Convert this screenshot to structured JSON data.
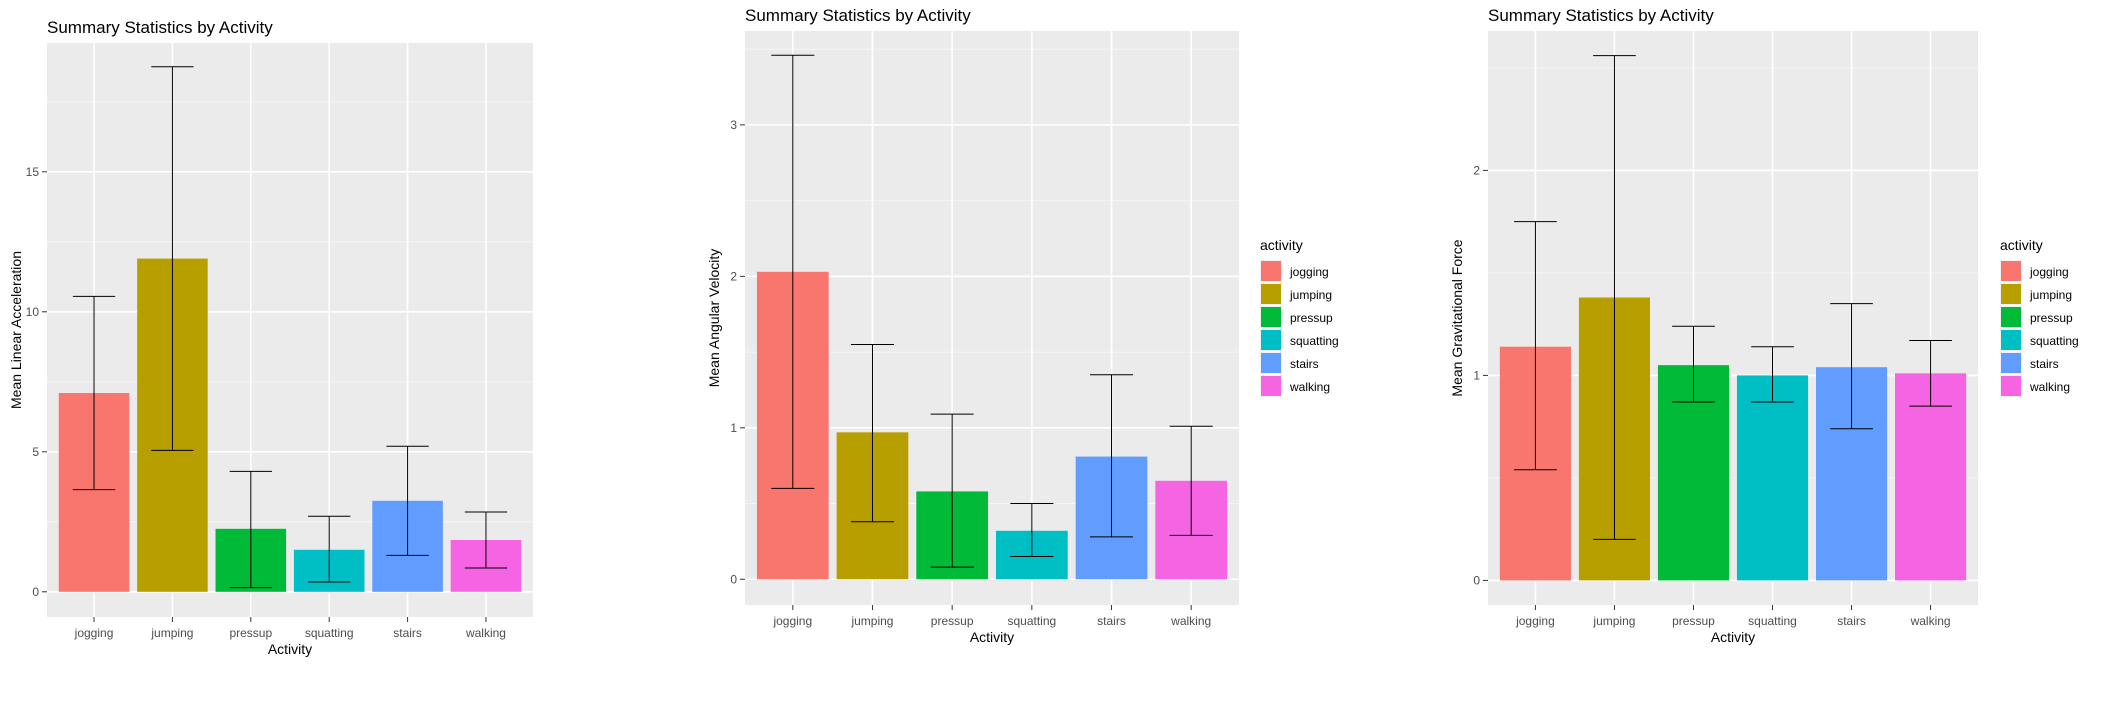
{
  "legend_title": "activity",
  "colors": {
    "jogging": "#F8766D",
    "jumping": "#B79F00",
    "pressup": "#00BA38",
    "squatting": "#00BFC4",
    "stairs": "#619CFF",
    "walking": "#F564E3"
  },
  "chart_data": [
    {
      "type": "bar",
      "title": "Summary Statistics by Activity",
      "xlabel": "Activity",
      "ylabel": "Mean Linear Acceleration",
      "categories": [
        "jogging",
        "jumping",
        "pressup",
        "squatting",
        "stairs",
        "walking"
      ],
      "values": [
        7.1,
        11.9,
        2.25,
        1.5,
        3.25,
        1.85
      ],
      "error_low": [
        3.65,
        5.05,
        0.15,
        0.35,
        1.3,
        0.85
      ],
      "error_high": [
        10.55,
        18.75,
        4.3,
        2.7,
        5.2,
        2.85
      ],
      "ylim": [
        -0.9,
        19.6
      ],
      "yticks": [
        0,
        5,
        10,
        15
      ],
      "ytick_labels": [
        "0",
        "5",
        "10",
        "15"
      ],
      "legend": "right",
      "grid": true
    },
    {
      "type": "bar",
      "title": "Summary Statistics by Activity",
      "xlabel": "Activity",
      "ylabel": "Mean Angular Velocity",
      "categories": [
        "jogging",
        "jumping",
        "pressup",
        "squatting",
        "stairs",
        "walking"
      ],
      "values": [
        2.03,
        0.97,
        0.58,
        0.32,
        0.81,
        0.65
      ],
      "error_low": [
        0.6,
        0.38,
        0.08,
        0.15,
        0.28,
        0.29
      ],
      "error_high": [
        3.46,
        1.55,
        1.09,
        0.5,
        1.35,
        1.01
      ],
      "ylim": [
        -0.17,
        3.62
      ],
      "yticks": [
        0,
        1,
        2,
        3
      ],
      "ytick_labels": [
        "0",
        "1",
        "2",
        "3"
      ],
      "legend": "right",
      "grid": true
    },
    {
      "type": "bar",
      "title": "Summary Statistics by Activity",
      "xlabel": "Activity",
      "ylabel": "Mean Gravitational Force",
      "categories": [
        "jogging",
        "jumping",
        "pressup",
        "squatting",
        "stairs",
        "walking"
      ],
      "values": [
        1.14,
        1.38,
        1.05,
        1.0,
        1.04,
        1.01
      ],
      "error_low": [
        0.54,
        0.2,
        0.87,
        0.87,
        0.74,
        0.85
      ],
      "error_high": [
        1.75,
        2.56,
        1.24,
        1.14,
        1.35,
        1.17
      ],
      "ylim": [
        -0.12,
        2.68
      ],
      "yticks": [
        0,
        1,
        2
      ],
      "ytick_labels": [
        "0",
        "1",
        "2"
      ],
      "legend": "right",
      "grid": true
    }
  ]
}
